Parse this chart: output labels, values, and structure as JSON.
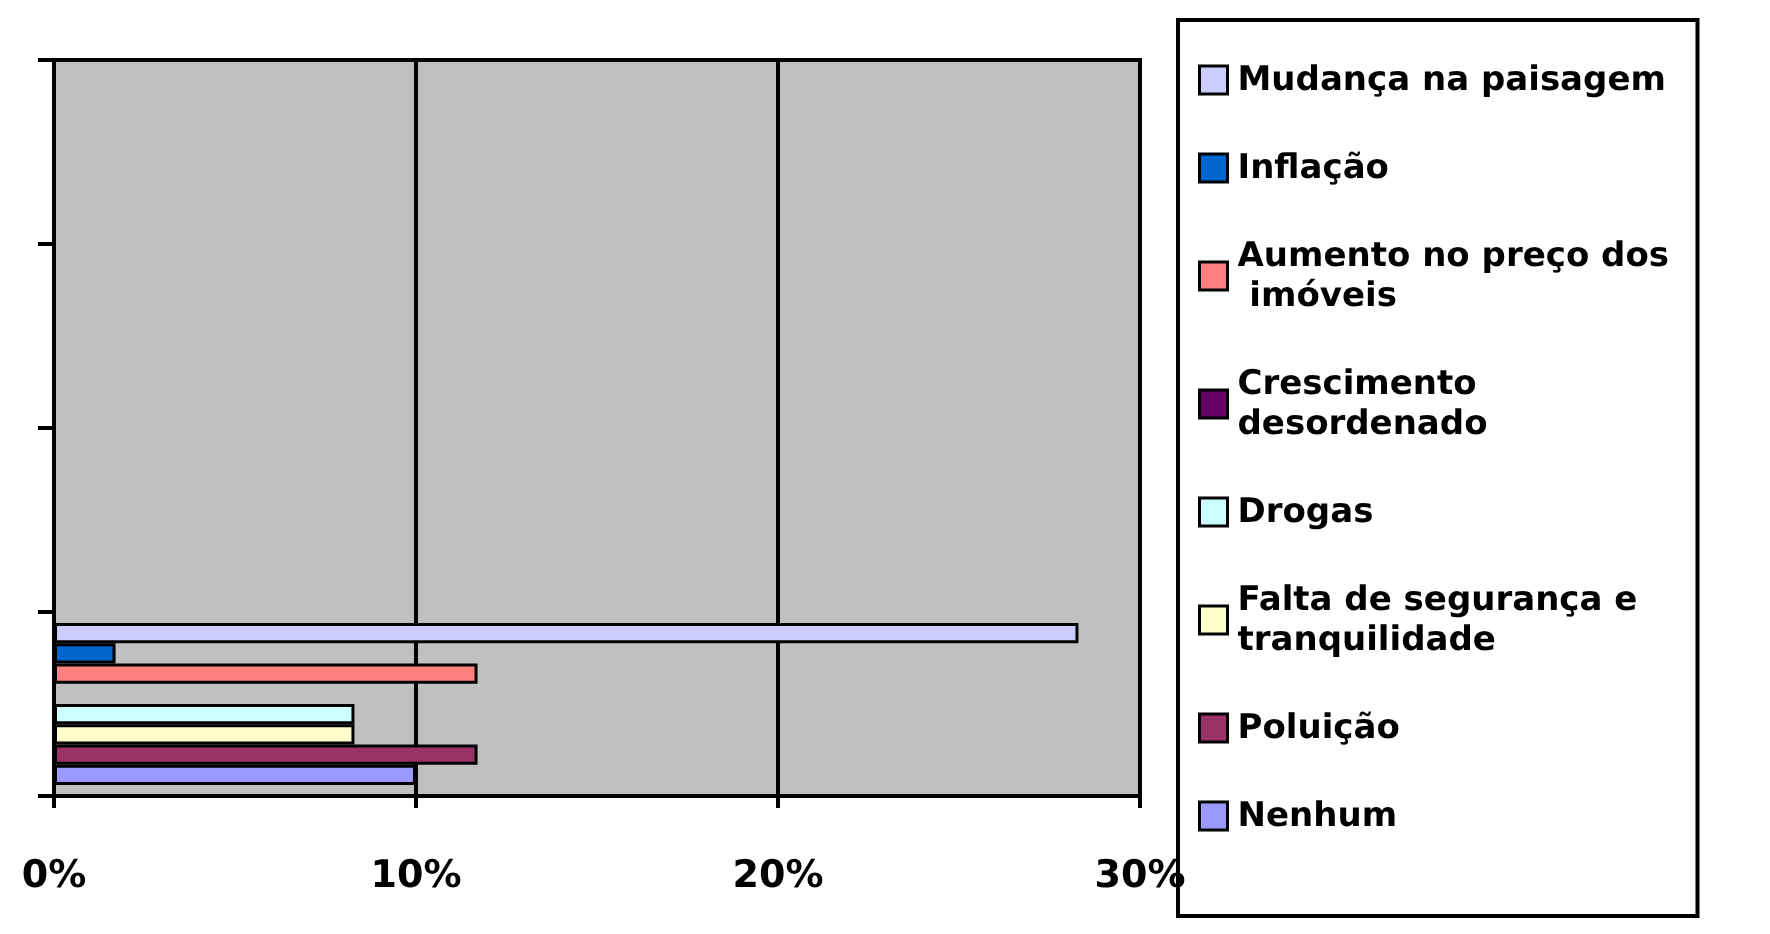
{
  "chart_data": {
    "type": "bar",
    "orientation": "horizontal",
    "categories": [
      null,
      null,
      null,
      null
    ],
    "series": [
      {
        "name": "Mudança na paisagem",
        "color": "#ccccff",
        "values": [
          null,
          null,
          null,
          28.3
        ]
      },
      {
        "name": "Inflação",
        "color": "#0066cc",
        "values": [
          null,
          null,
          null,
          1.7
        ]
      },
      {
        "name": "Aumento no preço dos imóveis",
        "color": "#ff8080",
        "values": [
          null,
          null,
          null,
          11.7
        ]
      },
      {
        "name": "Crescimento desordenado",
        "color": "#660066",
        "values": [
          null,
          null,
          null,
          0
        ]
      },
      {
        "name": "Drogas",
        "color": "#ccffff",
        "values": [
          null,
          null,
          null,
          8.3
        ]
      },
      {
        "name": "Falta de segurança e tranquilidade",
        "color": "#ffffcc",
        "values": [
          null,
          null,
          null,
          8.3
        ]
      },
      {
        "name": "Poluição",
        "color": "#993366",
        "values": [
          null,
          null,
          null,
          11.7
        ]
      },
      {
        "name": "Nenhum",
        "color": "#9999ff",
        "values": [
          null,
          null,
          null,
          10
        ]
      }
    ],
    "xlim": [
      0,
      30
    ],
    "xticks": [
      {
        "value": 0,
        "label": "0%"
      },
      {
        "value": 10,
        "label": "10%"
      },
      {
        "value": 20,
        "label": "20%"
      },
      {
        "value": 30,
        "label": "30%"
      }
    ],
    "grid": "x",
    "legend": "right"
  }
}
